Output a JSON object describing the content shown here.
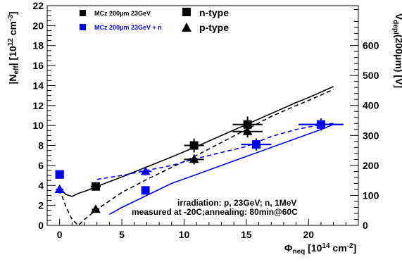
{
  "chart_data": {
    "type": "scatter",
    "xlabel": "Φneq [10¹⁴ cm⁻²]",
    "ylabel": "|Neff| [10¹² cm⁻³]",
    "y2label": "Vdepl(200μm) [V]",
    "xlim": [
      -1,
      24
    ],
    "ylim": [
      0,
      22
    ],
    "y2lim": [
      0,
      733
    ],
    "x_ticks": [
      "0",
      "5",
      "10",
      "15",
      "20"
    ],
    "x_tick_values": [
      0,
      5,
      10,
      15,
      20
    ],
    "y_ticks": [
      "0",
      "2",
      "4",
      "6",
      "8",
      "10",
      "12",
      "14",
      "16",
      "18",
      "20",
      "22"
    ],
    "y_tick_values": [
      0,
      2,
      4,
      6,
      8,
      10,
      12,
      14,
      16,
      18,
      20,
      22
    ],
    "y2_ticks": [
      "0",
      "100",
      "200",
      "300",
      "400",
      "500",
      "600"
    ],
    "y2_tick_values": [
      0,
      100,
      200,
      300,
      400,
      500,
      600
    ],
    "grid": false,
    "legend": {
      "placement": "top-left",
      "entries": [
        {
          "label": "MCz 200μm 23GeV",
          "color": "#000000"
        },
        {
          "label": "MCz 200μm 23GeV + n",
          "color": "#0000ff"
        }
      ],
      "type_entries": [
        {
          "label": "n-type",
          "marker": "square"
        },
        {
          "label": "p-type",
          "marker": "triangle"
        }
      ]
    },
    "annotations": [
      "irradiation: p, 23GeV; n, 1MeV",
      "measured at -20C;annealing: 80min@60C"
    ],
    "series": [
      {
        "name": "MCz 200μm 23GeV",
        "kind": "points",
        "marker": "square",
        "color": "#000000",
        "x": [
          0,
          2.9,
          10.8,
          15.1
        ],
        "y": [
          5.1,
          3.9,
          8.0,
          10.1
        ],
        "xerr": [
          0.3,
          0.4,
          0.8,
          1.2
        ],
        "yerr": [
          0.4,
          0.4,
          0.7,
          0.8
        ]
      },
      {
        "name": "MCz 200μm 23GeV",
        "kind": "points",
        "marker": "triangle",
        "color": "#000000",
        "x": [
          0,
          2.9,
          10.8,
          15.1
        ],
        "y": [
          3.6,
          1.6,
          6.6,
          9.4
        ],
        "xerr": [
          0.3,
          0.3,
          0.8,
          1.2
        ],
        "yerr": [
          0.4,
          0.3,
          0.5,
          0.6
        ]
      },
      {
        "name": "MCz 200μm 23GeV + n",
        "kind": "points",
        "marker": "square",
        "color": "#0000ff",
        "x": [
          0,
          6.9,
          15.8,
          21.0
        ],
        "y": [
          5.1,
          3.5,
          8.1,
          10.1
        ],
        "xerr": [
          0.3,
          0.3,
          1.2,
          1.8
        ],
        "yerr": [
          0.4,
          0.3,
          0.6,
          0.6
        ]
      },
      {
        "name": "MCz 200μm 23GeV + n",
        "kind": "points",
        "marker": "triangle",
        "color": "#0000ff",
        "x": [
          0,
          6.9,
          15.8,
          21.0
        ],
        "y": [
          3.6,
          5.4,
          8.1,
          10.1
        ],
        "xerr": [
          0.3,
          0.5,
          1.2,
          1.8
        ],
        "yerr": [
          0.4,
          0.4,
          0.6,
          0.6
        ]
      },
      {
        "name": "fit",
        "kind": "curve",
        "style": "solid",
        "color": "#000000",
        "x": [
          0,
          0.5,
          1,
          1.5,
          2,
          3,
          5,
          7,
          9,
          11,
          13,
          15,
          17,
          19,
          20,
          22
        ],
        "y": [
          3.8,
          3.1,
          2.9,
          3.2,
          3.4,
          3.9,
          4.85,
          5.85,
          6.85,
          7.9,
          9.0,
          10.1,
          11.2,
          12.3,
          12.8,
          13.9
        ]
      },
      {
        "name": "fit",
        "kind": "curve",
        "style": "dashed",
        "color": "#000000",
        "x": [
          0,
          0.5,
          1,
          1.5,
          2,
          3,
          5,
          7,
          9,
          11,
          13,
          15,
          17,
          19,
          20,
          22
        ],
        "y": [
          3.6,
          1.9,
          0.6,
          0,
          0.6,
          1.6,
          3.3,
          4.6,
          5.8,
          7.0,
          8.3,
          9.6,
          10.9,
          12.0,
          12.5,
          13.6
        ]
      },
      {
        "name": "fit",
        "kind": "curve",
        "style": "dashed",
        "color": "#0000ff",
        "x": [
          3,
          5,
          7,
          9,
          11,
          13,
          15,
          17,
          19,
          21,
          22
        ],
        "y": [
          4.6,
          5.0,
          5.5,
          6.0,
          6.7,
          7.3,
          7.9,
          8.9,
          9.6,
          10.1,
          10.2
        ]
      },
      {
        "name": "fit",
        "kind": "curve",
        "style": "solid",
        "color": "#0000ff",
        "x": [
          4,
          5,
          6,
          7,
          9,
          11,
          13,
          15,
          17,
          19,
          21,
          22
        ],
        "y": [
          1.1,
          1.8,
          2.4,
          3.0,
          4.2,
          5.1,
          6.0,
          6.9,
          7.8,
          8.7,
          9.6,
          10.1
        ]
      }
    ]
  }
}
